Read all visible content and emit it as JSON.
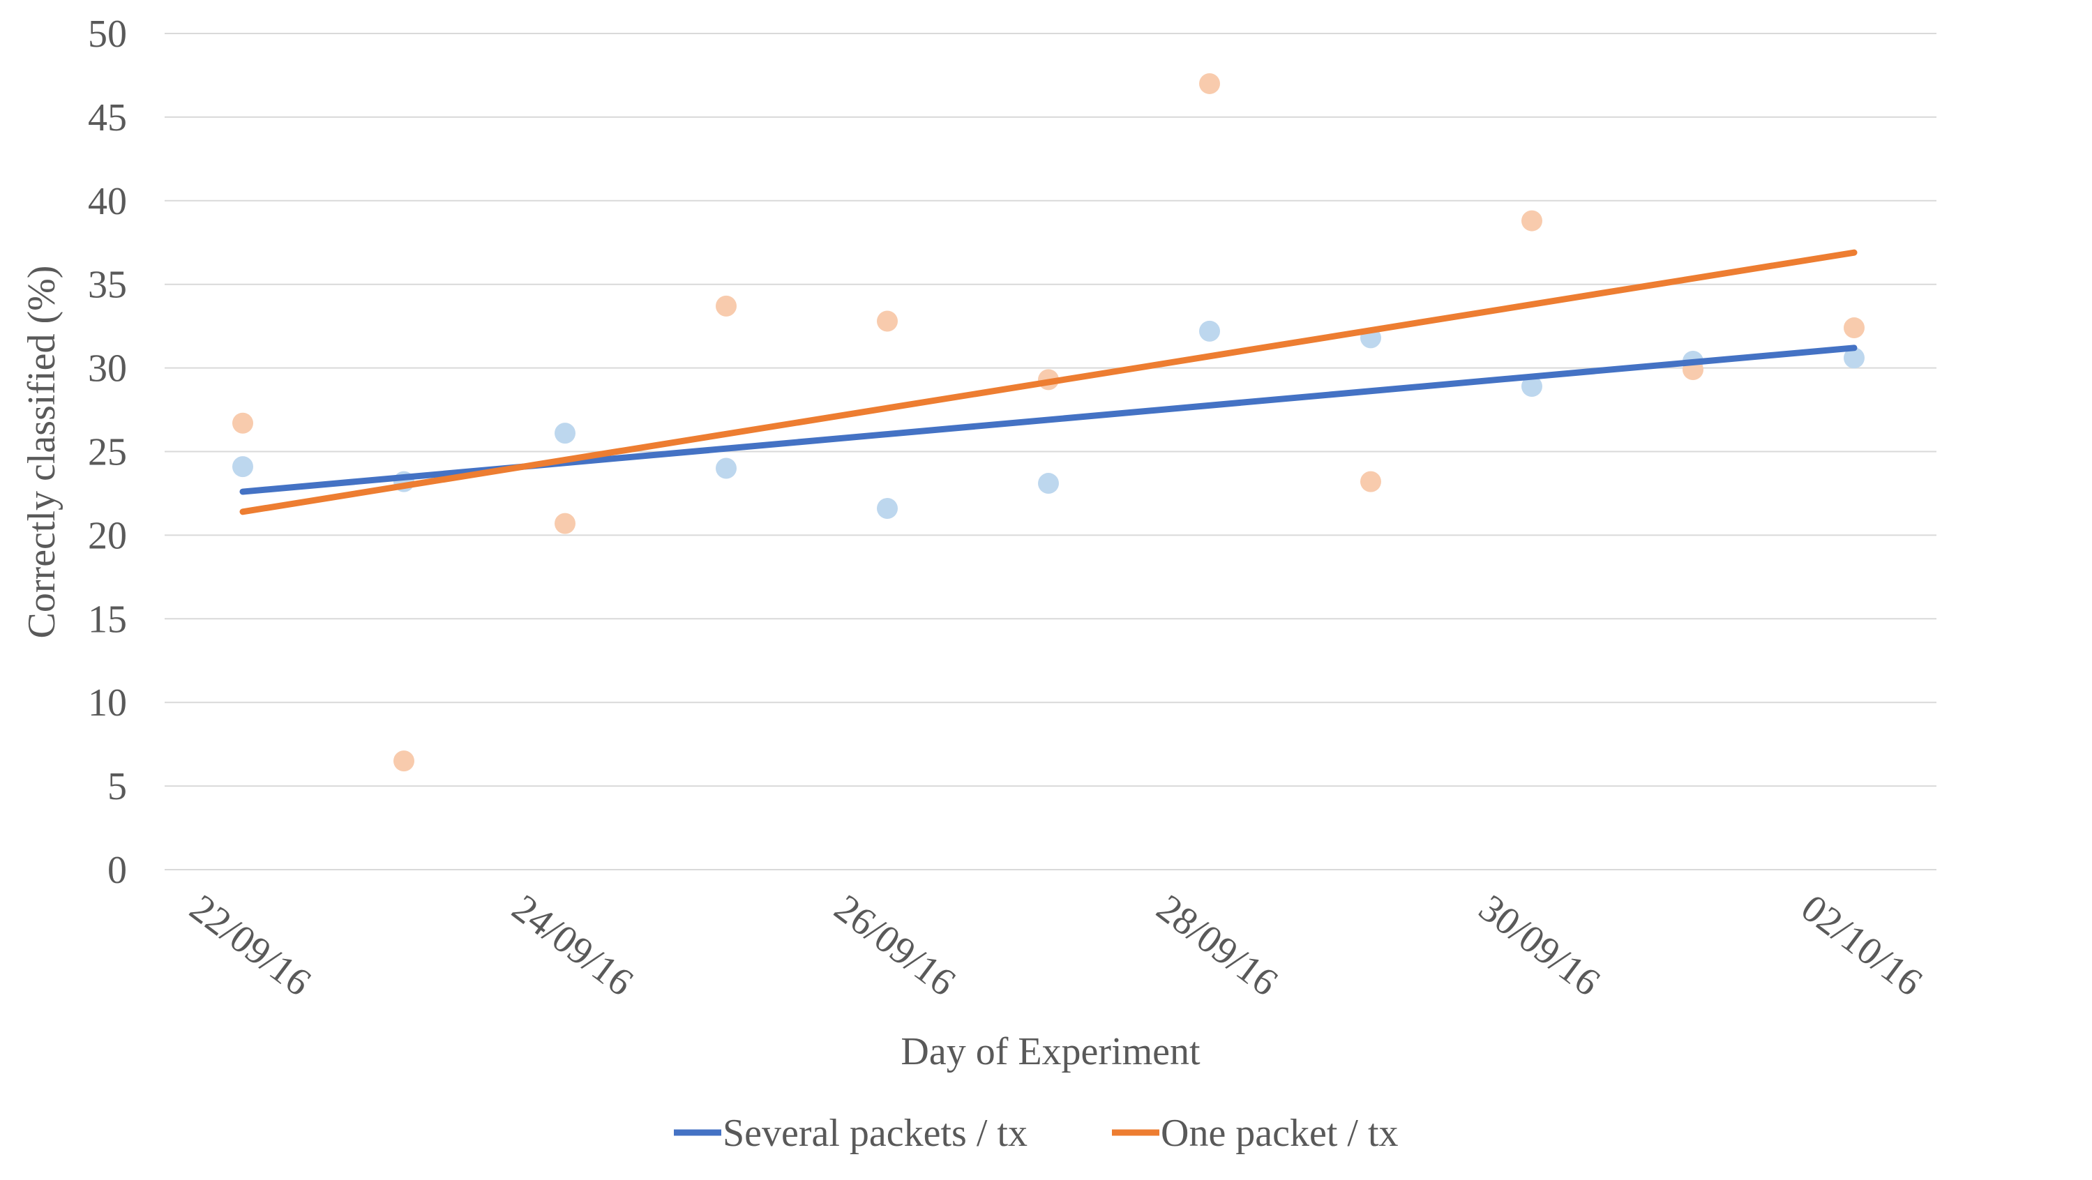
{
  "chart_data": {
    "type": "scatter",
    "title": "",
    "xlabel": "Day of Experiment",
    "ylabel": "Correctly classified (%)",
    "xlim": [
      "2016-09-21",
      "2016-10-03"
    ],
    "ylim": [
      0,
      50
    ],
    "yticks": [
      0,
      5,
      10,
      15,
      20,
      25,
      30,
      35,
      40,
      45,
      50
    ],
    "xticks": [
      {
        "date": "2016-09-22",
        "label": "22/09/16"
      },
      {
        "date": "2016-09-24",
        "label": "24/09/16"
      },
      {
        "date": "2016-09-26",
        "label": "26/09/16"
      },
      {
        "date": "2016-09-28",
        "label": "28/09/16"
      },
      {
        "date": "2016-09-30",
        "label": "30/09/16"
      },
      {
        "date": "2016-10-02",
        "label": "02/10/16"
      }
    ],
    "grid": "horizontal",
    "legend_position": "bottom",
    "series": [
      {
        "name": "Several packets / tx",
        "point_color": "#bdd7ee",
        "trend_color": "#4472c4",
        "points": [
          {
            "x": "2016-09-22",
            "y": 24.1
          },
          {
            "x": "2016-09-23",
            "y": 23.2
          },
          {
            "x": "2016-09-24",
            "y": 26.1
          },
          {
            "x": "2016-09-25",
            "y": 24.0
          },
          {
            "x": "2016-09-26",
            "y": 21.6
          },
          {
            "x": "2016-09-27",
            "y": 23.1
          },
          {
            "x": "2016-09-28",
            "y": 32.2
          },
          {
            "x": "2016-09-29",
            "y": 31.8
          },
          {
            "x": "2016-09-30",
            "y": 28.9
          },
          {
            "x": "2016-10-01",
            "y": 30.4
          },
          {
            "x": "2016-10-02",
            "y": 30.6
          }
        ],
        "trendline": [
          {
            "x": "2016-09-22",
            "y": 22.6
          },
          {
            "x": "2016-10-02",
            "y": 31.2
          }
        ]
      },
      {
        "name": "One packet / tx",
        "point_color": "#f8cbad",
        "trend_color": "#ed7d31",
        "points": [
          {
            "x": "2016-09-22",
            "y": 26.7
          },
          {
            "x": "2016-09-23",
            "y": 6.5
          },
          {
            "x": "2016-09-24",
            "y": 20.7
          },
          {
            "x": "2016-09-25",
            "y": 33.7
          },
          {
            "x": "2016-09-26",
            "y": 32.8
          },
          {
            "x": "2016-09-27",
            "y": 29.3
          },
          {
            "x": "2016-09-28",
            "y": 47.0
          },
          {
            "x": "2016-09-29",
            "y": 23.2
          },
          {
            "x": "2016-09-30",
            "y": 38.8
          },
          {
            "x": "2016-10-01",
            "y": 29.9
          },
          {
            "x": "2016-10-02",
            "y": 32.4
          }
        ],
        "trendline": [
          {
            "x": "2016-09-22",
            "y": 21.4
          },
          {
            "x": "2016-10-02",
            "y": 36.9
          }
        ]
      }
    ]
  },
  "colors": {
    "gridline": "#d9d9d9",
    "axis_text": "#595959"
  }
}
